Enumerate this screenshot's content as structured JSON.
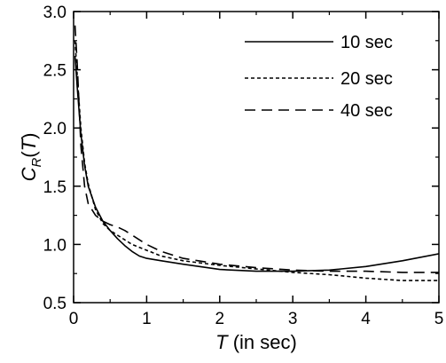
{
  "chart_data": {
    "type": "line",
    "xlabel_symbol": "T",
    "xlabel_rest": " (in sec)",
    "ylabel_main": "C",
    "ylabel_sub": "R",
    "ylabel_open": "(",
    "ylabel_arg": "T",
    "ylabel_close": ")",
    "xlim": [
      0,
      5
    ],
    "ylim": [
      0.5,
      3.0
    ],
    "x_ticks": [
      "0",
      "1",
      "2",
      "3",
      "4",
      "5"
    ],
    "y_ticks": [
      "0.5",
      "1.0",
      "1.5",
      "2.0",
      "2.5",
      "3.0"
    ],
    "grid": false,
    "legend_position": "top-right",
    "series": [
      {
        "name": "10 sec",
        "dash": "solid",
        "color": "#000000",
        "points": [
          [
            0.02,
            2.62
          ],
          [
            0.05,
            2.35
          ],
          [
            0.1,
            1.95
          ],
          [
            0.15,
            1.68
          ],
          [
            0.2,
            1.5
          ],
          [
            0.3,
            1.32
          ],
          [
            0.4,
            1.2
          ],
          [
            0.5,
            1.12
          ],
          [
            0.6,
            1.05
          ],
          [
            0.7,
            0.99
          ],
          [
            0.8,
            0.94
          ],
          [
            0.9,
            0.9
          ],
          [
            1.0,
            0.88
          ],
          [
            1.2,
            0.86
          ],
          [
            1.5,
            0.83
          ],
          [
            2.0,
            0.785
          ],
          [
            2.5,
            0.77
          ],
          [
            3.0,
            0.77
          ],
          [
            3.5,
            0.78
          ],
          [
            4.0,
            0.81
          ],
          [
            4.5,
            0.86
          ],
          [
            5.0,
            0.92
          ]
        ]
      },
      {
        "name": "20 sec",
        "dash": "short",
        "color": "#000000",
        "points": [
          [
            0.02,
            2.75
          ],
          [
            0.05,
            2.45
          ],
          [
            0.1,
            2.0
          ],
          [
            0.15,
            1.7
          ],
          [
            0.2,
            1.52
          ],
          [
            0.3,
            1.3
          ],
          [
            0.4,
            1.18
          ],
          [
            0.5,
            1.12
          ],
          [
            0.6,
            1.08
          ],
          [
            0.7,
            1.04
          ],
          [
            0.8,
            1.0
          ],
          [
            1.0,
            0.95
          ],
          [
            1.2,
            0.9
          ],
          [
            1.5,
            0.86
          ],
          [
            2.0,
            0.82
          ],
          [
            2.5,
            0.79
          ],
          [
            3.0,
            0.76
          ],
          [
            3.5,
            0.74
          ],
          [
            4.0,
            0.71
          ],
          [
            4.5,
            0.69
          ],
          [
            5.0,
            0.69
          ]
        ]
      },
      {
        "name": "40 sec",
        "dash": "long",
        "color": "#000000",
        "points": [
          [
            0.02,
            2.88
          ],
          [
            0.05,
            2.55
          ],
          [
            0.1,
            1.85
          ],
          [
            0.15,
            1.5
          ],
          [
            0.2,
            1.35
          ],
          [
            0.3,
            1.25
          ],
          [
            0.4,
            1.2
          ],
          [
            0.5,
            1.17
          ],
          [
            0.6,
            1.15
          ],
          [
            0.7,
            1.12
          ],
          [
            0.8,
            1.08
          ],
          [
            1.0,
            1.0
          ],
          [
            1.2,
            0.94
          ],
          [
            1.5,
            0.88
          ],
          [
            2.0,
            0.83
          ],
          [
            2.5,
            0.8
          ],
          [
            3.0,
            0.78
          ],
          [
            3.5,
            0.77
          ],
          [
            4.0,
            0.77
          ],
          [
            4.5,
            0.76
          ],
          [
            5.0,
            0.76
          ]
        ]
      }
    ]
  }
}
